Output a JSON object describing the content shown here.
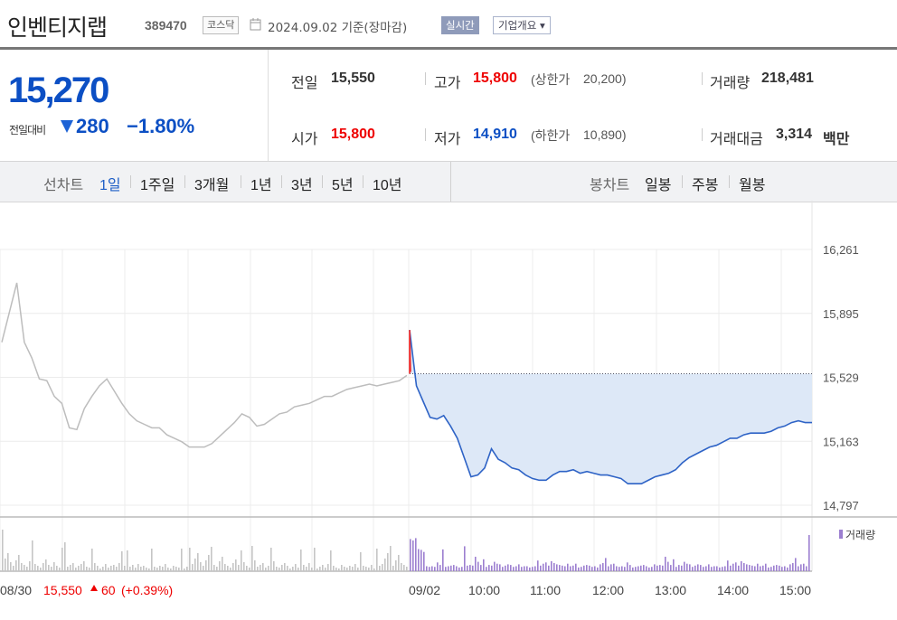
{
  "header": {
    "name": "인벤티지랩",
    "code": "389470",
    "market": "코스닥",
    "date": "2024.09.02 기준(장마감)",
    "live_label": "실시간",
    "corp_label": "기업개요 ▾"
  },
  "price": {
    "current": "15,270",
    "change_label": "전일대비",
    "change": "280",
    "change_pct": "−1.80%"
  },
  "stats": {
    "prev_label": "전일",
    "prev": "15,550",
    "high_label": "고가",
    "high": "15,800",
    "upper_label": "(상한가",
    "upper": "20,200)",
    "volume_label": "거래량",
    "volume": "218,481",
    "open_label": "시가",
    "open": "15,800",
    "low_label": "저가",
    "low": "14,910",
    "lower_label": "(하한가",
    "lower": "10,890)",
    "amount_label": "거래대금",
    "amount": "3,314",
    "amount_unit": "백만"
  },
  "tabs": {
    "line_label": "선차트",
    "line_items": [
      "1일",
      "1주일",
      "3개월",
      "1년",
      "3년",
      "5년",
      "10년"
    ],
    "candle_label": "봉차트",
    "candle_items": [
      "일봉",
      "주봉",
      "월봉"
    ]
  },
  "chart_data": {
    "type": "line",
    "y_ticks": [
      "16,261",
      "15,895",
      "15,529",
      "15,163",
      "14,797"
    ],
    "ylim": [
      14797,
      16261
    ],
    "reference_price": 15550,
    "x_ticks": [
      "08/30",
      "09/02",
      "10:00",
      "11:00",
      "12:00",
      "13:00",
      "14:00",
      "15:00"
    ],
    "prev_day_summary": {
      "close": "15,550",
      "change": "60",
      "pct": "(+0.39%)"
    },
    "volume_label": "거래량",
    "series": [
      {
        "values": [
          15730,
          15900,
          16070,
          15730,
          15640,
          15520,
          15510,
          15420,
          15380,
          15240,
          15230,
          15350,
          15420,
          15480,
          15520,
          15450,
          15380,
          15320,
          15280,
          15260,
          15240,
          15240,
          15200,
          15180,
          15160,
          15130,
          15130,
          15130,
          15150,
          15190,
          15230,
          15270,
          15320,
          15300,
          15250,
          15260,
          15290,
          15320,
          15330,
          15360,
          15370,
          15380,
          15400,
          15420,
          15420,
          15440,
          15460,
          15470,
          15480,
          15490,
          15480,
          15490,
          15500,
          15510,
          15540
        ]
      },
      {
        "values": [
          15800,
          15480,
          15390,
          15300,
          15290,
          15310,
          15250,
          15180,
          15070,
          14960,
          14970,
          15010,
          15120,
          15060,
          15040,
          15010,
          15000,
          14970,
          14950,
          14940,
          14940,
          14970,
          14990,
          14990,
          15000,
          14980,
          14990,
          14980,
          14970,
          14970,
          14960,
          14950,
          14920,
          14920,
          14920,
          14940,
          14960,
          14970,
          14980,
          15000,
          15040,
          15070,
          15090,
          15110,
          15130,
          15140,
          15160,
          15180,
          15180,
          15200,
          15210,
          15210,
          15210,
          15220,
          15240,
          15250,
          15270,
          15280,
          15270,
          15270
        ]
      }
    ],
    "colors": {
      "today": "#2e63c6",
      "prev": "#bdbdbd",
      "fill": "#dde8f7",
      "peak": "#f02a2a"
    }
  }
}
